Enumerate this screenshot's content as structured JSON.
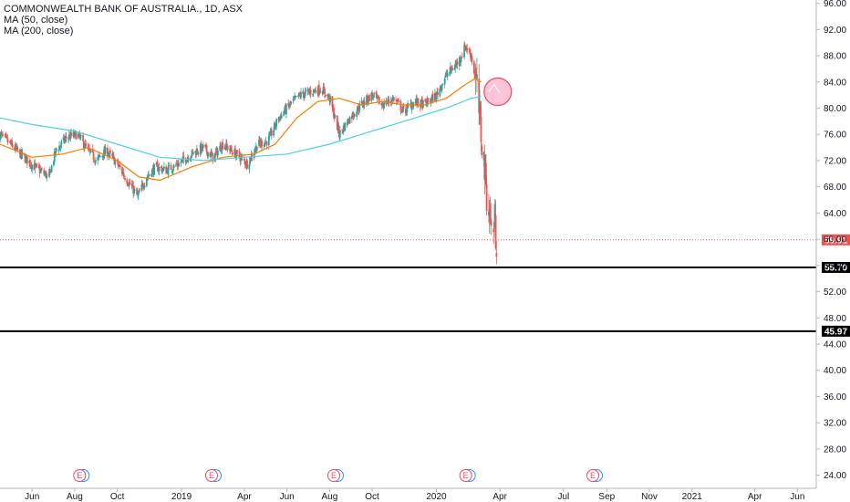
{
  "legend": {
    "symbol": "COMMONWEALTH BANK OF AUSTRALIA., 1D, ASX",
    "ma50": "MA (50, close)",
    "ma200": "MA (200, close)"
  },
  "colors": {
    "up": "#26a69a",
    "down": "#ef5350",
    "ma50": "#f57c00",
    "ma200": "#4dd0e1",
    "price_line": "#ef5350",
    "level_line": "#000000",
    "circle_fill": "#f8bbd0",
    "circle_stroke": "#e84a5f",
    "earnings": "#e84a5f",
    "dividend": "#2196f3"
  },
  "chart_data": {
    "type": "candlestick",
    "y_axis": {
      "ticks": [
        24,
        28,
        32,
        36,
        40,
        44,
        48,
        52,
        56,
        60,
        64,
        68,
        72,
        76,
        80,
        84,
        88,
        92,
        96
      ],
      "tick_labels": [
        "24.00",
        "28.00",
        "32.00",
        "36.00",
        "40.00",
        "44.00",
        "48.00",
        "52.00",
        "56.00",
        "60.00",
        "64.00",
        "68.00",
        "72.00",
        "76.00",
        "80.00",
        "84.00",
        "88.00",
        "92.00",
        "96.00"
      ],
      "ylim": [
        22,
        96.5
      ],
      "scale": "linear",
      "side": "right"
    },
    "x_axis": {
      "tick_labels": [
        "Jun",
        "Aug",
        "Oct",
        "2019",
        "Apr",
        "Jun",
        "Aug",
        "Oct",
        "2020",
        "Apr",
        "Jul",
        "Sep",
        "Nov",
        "2021",
        "Apr",
        "Jun"
      ],
      "tick_dates": [
        "2018-06-01",
        "2018-08-01",
        "2018-10-01",
        "2019-01-01",
        "2019-04-01",
        "2019-06-01",
        "2019-08-01",
        "2019-10-01",
        "2020-01-01",
        "2020-04-01",
        "2020-07-01",
        "2020-09-01",
        "2020-11-01",
        "2021-01-01",
        "2021-04-01",
        "2021-06-01"
      ]
    },
    "price_path": [
      [
        "2018-04-16",
        76.0
      ],
      [
        "2018-05-01",
        74.5
      ],
      [
        "2018-05-20",
        72.5
      ],
      [
        "2018-06-05",
        71.0
      ],
      [
        "2018-06-25",
        69.5
      ],
      [
        "2018-07-05",
        73.5
      ],
      [
        "2018-07-20",
        75.5
      ],
      [
        "2018-08-05",
        76.0
      ],
      [
        "2018-08-20",
        73.5
      ],
      [
        "2018-09-01",
        72.0
      ],
      [
        "2018-09-15",
        73.5
      ],
      [
        "2018-10-01",
        71.5
      ],
      [
        "2018-10-15",
        69.0
      ],
      [
        "2018-10-30",
        66.5
      ],
      [
        "2018-11-12",
        69.5
      ],
      [
        "2018-11-25",
        71.0
      ],
      [
        "2018-12-10",
        70.5
      ],
      [
        "2018-12-28",
        71.5
      ],
      [
        "2019-01-15",
        73.0
      ],
      [
        "2019-02-01",
        74.0
      ],
      [
        "2019-02-15",
        72.5
      ],
      [
        "2019-03-01",
        74.5
      ],
      [
        "2019-03-20",
        73.0
      ],
      [
        "2019-04-05",
        71.5
      ],
      [
        "2019-04-20",
        74.5
      ],
      [
        "2019-05-05",
        75.0
      ],
      [
        "2019-05-20",
        78.5
      ],
      [
        "2019-06-05",
        80.5
      ],
      [
        "2019-06-20",
        82.0
      ],
      [
        "2019-07-05",
        82.5
      ],
      [
        "2019-07-20",
        83.0
      ],
      [
        "2019-08-01",
        81.5
      ],
      [
        "2019-08-15",
        76.0
      ],
      [
        "2019-08-30",
        78.5
      ],
      [
        "2019-09-15",
        80.5
      ],
      [
        "2019-10-01",
        82.0
      ],
      [
        "2019-10-15",
        80.5
      ],
      [
        "2019-11-01",
        81.5
      ],
      [
        "2019-11-15",
        79.5
      ],
      [
        "2019-12-01",
        81.0
      ],
      [
        "2019-12-15",
        80.5
      ],
      [
        "2020-01-01",
        82.0
      ],
      [
        "2020-01-15",
        85.0
      ],
      [
        "2020-02-01",
        87.0
      ],
      [
        "2020-02-12",
        89.5
      ],
      [
        "2020-02-20",
        88.0
      ],
      [
        "2020-02-28",
        83.0
      ],
      [
        "2020-03-05",
        76.0
      ],
      [
        "2020-03-10",
        71.0
      ],
      [
        "2020-03-13",
        67.0
      ],
      [
        "2020-03-17",
        64.0
      ],
      [
        "2020-03-20",
        61.5
      ],
      [
        "2020-03-24",
        62.5
      ],
      [
        "2020-03-27",
        59.91
      ]
    ],
    "series": [
      {
        "name": "MA (50, close)",
        "points": [
          [
            "2018-04-16",
            74.5
          ],
          [
            "2018-06-01",
            72.5
          ],
          [
            "2018-07-15",
            73.0
          ],
          [
            "2018-08-20",
            74.0
          ],
          [
            "2018-10-01",
            72.0
          ],
          [
            "2018-11-01",
            69.5
          ],
          [
            "2018-12-01",
            69.0
          ],
          [
            "2019-01-15",
            71.0
          ],
          [
            "2019-03-01",
            72.5
          ],
          [
            "2019-04-15",
            73.0
          ],
          [
            "2019-05-15",
            74.5
          ],
          [
            "2019-06-15",
            78.5
          ],
          [
            "2019-07-15",
            81.0
          ],
          [
            "2019-08-15",
            81.5
          ],
          [
            "2019-09-15",
            80.5
          ],
          [
            "2019-10-15",
            81.0
          ],
          [
            "2019-11-15",
            80.5
          ],
          [
            "2019-12-15",
            80.5
          ],
          [
            "2020-01-15",
            81.5
          ],
          [
            "2020-02-10",
            83.5
          ],
          [
            "2020-02-25",
            84.5
          ],
          [
            "2020-03-05",
            84.0
          ]
        ]
      },
      {
        "name": "MA (200, close)",
        "points": [
          [
            "2018-04-16",
            78.5
          ],
          [
            "2018-06-01",
            77.5
          ],
          [
            "2018-08-01",
            76.5
          ],
          [
            "2018-10-01",
            74.5
          ],
          [
            "2018-12-01",
            72.5
          ],
          [
            "2019-02-01",
            72.0
          ],
          [
            "2019-04-01",
            72.5
          ],
          [
            "2019-06-01",
            73.0
          ],
          [
            "2019-08-01",
            74.5
          ],
          [
            "2019-10-01",
            76.5
          ],
          [
            "2019-12-01",
            78.5
          ],
          [
            "2020-01-15",
            80.0
          ],
          [
            "2020-02-20",
            81.5
          ],
          [
            "2020-03-05",
            81.8
          ]
        ]
      }
    ],
    "last_price": {
      "value": 59.91,
      "label": "59.91"
    },
    "levels": [
      {
        "value": 55.7,
        "label": "55.70"
      },
      {
        "value": 45.97,
        "label": "45.97"
      }
    ],
    "annotation_circle": {
      "date": "2020-03-08",
      "price": 82.5
    },
    "events": [
      {
        "date": "2018-08-08",
        "label": "E"
      },
      {
        "date": "2019-02-13",
        "label": "E"
      },
      {
        "date": "2019-08-07",
        "label": "E"
      },
      {
        "date": "2020-02-12",
        "label": "E"
      },
      {
        "date": "2020-08-12",
        "label": "E"
      }
    ],
    "grid": false
  }
}
